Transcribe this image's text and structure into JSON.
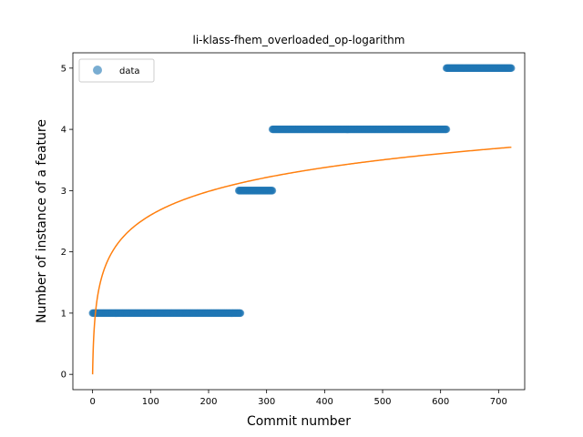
{
  "chart_data": {
    "type": "scatter",
    "title": "li-klass-fhem_overloaded_op-logarithm",
    "xlabel": "Commit number",
    "ylabel": "Number of instance of a feature",
    "xlim": [
      -34,
      745
    ],
    "ylim": [
      -0.25,
      5.25
    ],
    "xticks": [
      0,
      100,
      200,
      300,
      400,
      500,
      600,
      700
    ],
    "yticks": [
      0,
      1,
      2,
      3,
      4,
      5
    ],
    "grid": false,
    "legend": {
      "placement": "top-left",
      "entries": [
        "data"
      ]
    },
    "series": [
      {
        "name": "data",
        "kind": "scatter",
        "color": "#1f77b4",
        "segments": [
          {
            "x_start": 0,
            "x_end": 255,
            "y": 1
          },
          {
            "x_start": 252,
            "x_end": 310,
            "y": 3
          },
          {
            "x_start": 310,
            "x_end": 610,
            "y": 4
          },
          {
            "x_start": 610,
            "x_end": 722,
            "y": 5
          }
        ]
      },
      {
        "kind": "line",
        "color": "#ff7f0e",
        "fit": {
          "form": "a*ln(x+1)",
          "a": 0.5633,
          "x_start": 0,
          "x_end": 722
        }
      }
    ]
  }
}
